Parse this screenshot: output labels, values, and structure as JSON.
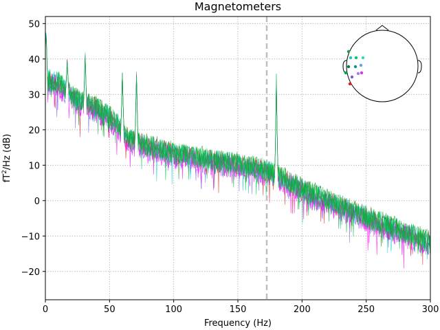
{
  "chart_data": {
    "type": "line",
    "title": "Magnetometers",
    "xlabel": "Frequency (Hz)",
    "ylabel_base": "fT",
    "ylabel_sup": "2",
    "ylabel_rest": "/Hz (dB)",
    "xlim": [
      0,
      300
    ],
    "ylim": [
      -28,
      52
    ],
    "xticks": [
      0,
      50,
      100,
      150,
      200,
      250,
      300
    ],
    "yticks": [
      -20,
      -10,
      0,
      10,
      20,
      30,
      40,
      50
    ],
    "xtick_labels": [
      "0",
      "50",
      "100",
      "150",
      "200",
      "250",
      "300"
    ],
    "ytick_labels": [
      "−20",
      "−10",
      "0",
      "10",
      "20",
      "30",
      "40",
      "50"
    ],
    "grid": true,
    "marker_line": {
      "x": 172.5,
      "style": "dashed",
      "color": "#bfbfbf"
    },
    "series_colors": [
      "#e41a1c",
      "#7b68ee",
      "#00ced1",
      "#ff00ff",
      "#228b22",
      "#00cc44",
      "#00b140"
    ],
    "series_defs": [
      {
        "offset": 0.0,
        "noise": 3.2,
        "seed": 11
      },
      {
        "offset": -0.6,
        "noise": 3.4,
        "seed": 23
      },
      {
        "offset": 0.4,
        "noise": 3.0,
        "seed": 37
      },
      {
        "offset": -0.9,
        "noise": 3.3,
        "seed": 41
      },
      {
        "offset": 0.7,
        "noise": 3.1,
        "seed": 53
      },
      {
        "offset": 0.2,
        "noise": 3.2,
        "seed": 67
      },
      {
        "offset": 0.5,
        "noise": 3.0,
        "seed": 79
      }
    ],
    "trend_points": [
      {
        "x": 0,
        "y": 34
      },
      {
        "x": 10,
        "y": 33
      },
      {
        "x": 25,
        "y": 28
      },
      {
        "x": 40,
        "y": 26
      },
      {
        "x": 55,
        "y": 22
      },
      {
        "x": 65,
        "y": 17
      },
      {
        "x": 100,
        "y": 13
      },
      {
        "x": 150,
        "y": 10
      },
      {
        "x": 175,
        "y": 8
      },
      {
        "x": 200,
        "y": 3
      },
      {
        "x": 250,
        "y": -5
      },
      {
        "x": 300,
        "y": -12
      }
    ],
    "peaks": [
      {
        "x": 0.5,
        "y": 50
      },
      {
        "x": 17,
        "y": 40
      },
      {
        "x": 31,
        "y": 42
      },
      {
        "x": 60,
        "y": 37
      },
      {
        "x": 71,
        "y": 37
      },
      {
        "x": 180,
        "y": 36
      }
    ],
    "sensor_inset": {
      "dot_colors": [
        "#1f9e3a",
        "#00cc66",
        "#22c3c3",
        "#2fd6c8",
        "#0a7b3f",
        "#128f88",
        "#6aa0e0",
        "#a77be3",
        "#e41a1c",
        "#7d5bd6",
        "#d03ce0",
        "#00a651"
      ]
    }
  }
}
